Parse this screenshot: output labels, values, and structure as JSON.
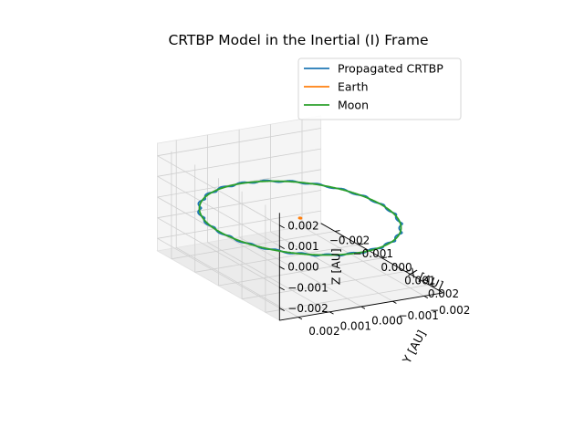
{
  "chart_data": {
    "type": "line",
    "projection": "3d",
    "title": "CRTBP Model in the Inertial (I) Frame",
    "xlabel": "X [AU]",
    "ylabel": "Y [AU]",
    "zlabel": "Z [AU]",
    "xlim": [
      -0.0026,
      0.0026
    ],
    "ylim": [
      -0.0026,
      0.0026
    ],
    "zlim": [
      -0.0026,
      0.0026
    ],
    "x_ticks": [
      "−0.002",
      "−0.001",
      "0.000",
      "0.001",
      "0.002"
    ],
    "y_ticks": [
      "−0.002",
      "−0.001",
      "0.000",
      "0.001",
      "0.002"
    ],
    "z_ticks": [
      "−0.002",
      "−0.001",
      "0.000",
      "0.001",
      "0.002"
    ],
    "grid": true,
    "legend_position": "upper right",
    "series": [
      {
        "name": "Propagated CRTBP",
        "color": "#1f77b4",
        "shape": "circle",
        "center": [
          0,
          0,
          0
        ],
        "radius": 0.00257,
        "wobble_amplitude": 5e-05,
        "wobble_cycles": 24
      },
      {
        "name": "Earth",
        "color": "#ff7f0e",
        "shape": "circle",
        "center": [
          0,
          0,
          0
        ],
        "radius": 3.13e-05,
        "wobble_amplitude": 0,
        "wobble_cycles": 0
      },
      {
        "name": "Moon",
        "color": "#2ca02c",
        "shape": "circle",
        "center": [
          0,
          0,
          0
        ],
        "radius": 0.00257,
        "wobble_amplitude": 0,
        "wobble_cycles": 0
      }
    ]
  }
}
